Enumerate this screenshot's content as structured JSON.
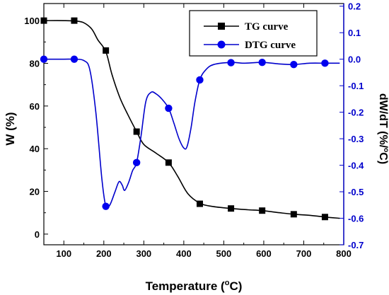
{
  "chart_data": {
    "type": "line",
    "x": {
      "title_main": "Temperature (",
      "title_sup": "o",
      "title_end": "C)",
      "range": [
        50,
        800
      ],
      "ticks": [
        100,
        200,
        300,
        400,
        500,
        600,
        700,
        800
      ]
    },
    "y_left": {
      "title": "W  (%)",
      "range": [
        -5,
        108
      ],
      "ticks": [
        0,
        20,
        40,
        60,
        80,
        100
      ],
      "color": "#000000"
    },
    "y_right": {
      "title_main": "dW/dT (%/",
      "title_sup": "o",
      "title_end": "C)",
      "range": [
        -0.7,
        0.21
      ],
      "ticks": [
        0.2,
        0.1,
        0.0,
        -0.1,
        -0.2,
        -0.3,
        -0.4,
        -0.5,
        -0.6,
        -0.7
      ],
      "tick_labels": [
        "0.2",
        "0.1",
        "0.0",
        "-0.1",
        "-0.2",
        "-0.3",
        "-0.4",
        "-0.5",
        "-0.6",
        "-0.7"
      ],
      "color": "#0000cc"
    },
    "legend": {
      "position": "top-right"
    },
    "series": [
      {
        "name": "TG curve",
        "axis": "left",
        "color": "#000000",
        "marker": "square",
        "curve": [
          [
            50,
            100
          ],
          [
            100,
            100
          ],
          [
            130,
            99.8
          ],
          [
            150,
            99
          ],
          [
            170,
            96
          ],
          [
            185,
            91
          ],
          [
            205,
            85.5
          ],
          [
            220,
            75
          ],
          [
            240,
            64
          ],
          [
            260,
            56
          ],
          [
            282,
            48
          ],
          [
            300,
            42
          ],
          [
            330,
            38
          ],
          [
            362,
            33.5
          ],
          [
            385,
            27
          ],
          [
            410,
            19
          ],
          [
            440,
            14.5
          ],
          [
            470,
            13
          ],
          [
            518,
            12
          ],
          [
            560,
            11.4
          ],
          [
            596,
            11
          ],
          [
            640,
            10
          ],
          [
            675,
            9.3
          ],
          [
            720,
            8.7
          ],
          [
            753,
            8
          ],
          [
            790,
            7.4
          ]
        ],
        "markers": [
          [
            50,
            100
          ],
          [
            126,
            100
          ],
          [
            205,
            86
          ],
          [
            282,
            48
          ],
          [
            362,
            33.5
          ],
          [
            440,
            14.2
          ],
          [
            518,
            12
          ],
          [
            596,
            11
          ],
          [
            675,
            9.3
          ],
          [
            753,
            8
          ]
        ]
      },
      {
        "name": "DTG curve",
        "axis": "right",
        "color": "#0000cc",
        "marker": "circle",
        "curve": [
          [
            50,
            0.0
          ],
          [
            100,
            0.0
          ],
          [
            126,
            0.0
          ],
          [
            150,
            -0.005
          ],
          [
            165,
            -0.04
          ],
          [
            180,
            -0.2
          ],
          [
            195,
            -0.45
          ],
          [
            205,
            -0.555
          ],
          [
            215,
            -0.55
          ],
          [
            228,
            -0.5
          ],
          [
            238,
            -0.462
          ],
          [
            246,
            -0.475
          ],
          [
            252,
            -0.495
          ],
          [
            262,
            -0.465
          ],
          [
            272,
            -0.42
          ],
          [
            282,
            -0.39
          ],
          [
            293,
            -0.29
          ],
          [
            305,
            -0.16
          ],
          [
            318,
            -0.125
          ],
          [
            330,
            -0.13
          ],
          [
            345,
            -0.15
          ],
          [
            362,
            -0.185
          ],
          [
            375,
            -0.24
          ],
          [
            388,
            -0.3
          ],
          [
            400,
            -0.335
          ],
          [
            408,
            -0.33
          ],
          [
            418,
            -0.26
          ],
          [
            428,
            -0.16
          ],
          [
            440,
            -0.078
          ],
          [
            455,
            -0.04
          ],
          [
            475,
            -0.02
          ],
          [
            518,
            -0.012
          ],
          [
            550,
            -0.015
          ],
          [
            596,
            -0.012
          ],
          [
            640,
            -0.018
          ],
          [
            675,
            -0.02
          ],
          [
            715,
            -0.015
          ],
          [
            753,
            -0.015
          ],
          [
            790,
            -0.015
          ]
        ],
        "markers": [
          [
            50,
            0.0
          ],
          [
            126,
            0.0
          ],
          [
            205,
            -0.555
          ],
          [
            282,
            -0.39
          ],
          [
            362,
            -0.185
          ],
          [
            440,
            -0.078
          ],
          [
            518,
            -0.013
          ],
          [
            596,
            -0.012
          ],
          [
            675,
            -0.02
          ],
          [
            753,
            -0.015
          ]
        ]
      }
    ]
  }
}
